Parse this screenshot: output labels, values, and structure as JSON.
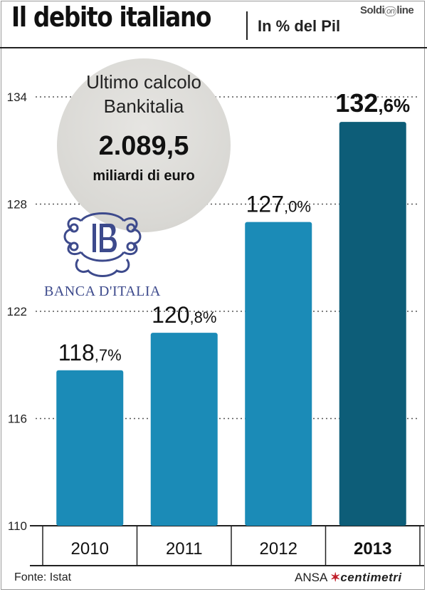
{
  "header": {
    "title": "Il debito italiano",
    "subtitle": "In % del Pil",
    "logo_left": "Soldi",
    "logo_mark": "on",
    "logo_right": "line"
  },
  "callout": {
    "line1": "Ultimo calcolo",
    "line2": "Bankitalia",
    "value": "2.089,5",
    "unit": "miliardi di euro"
  },
  "brand_badge": {
    "text": "BANCA D'ITALIA"
  },
  "footer": {
    "source": "Fonte: Istat",
    "agency": "ANSA",
    "agency_product": "centimetri"
  },
  "colors": {
    "bar": "#1b8bb7",
    "bar_highlight": "#0d5d78",
    "grid": "#555555",
    "logo": "#3d4a8c"
  },
  "chart_data": {
    "type": "bar",
    "title": "Il debito italiano",
    "subtitle": "In % del Pil",
    "categories": [
      "2010",
      "2011",
      "2012",
      "2013"
    ],
    "values": [
      118.7,
      120.8,
      127.0,
      132.6
    ],
    "value_labels": [
      {
        "int": "118",
        "dec": ",7%"
      },
      {
        "int": "120",
        "dec": ",8%"
      },
      {
        "int": "127",
        "dec": ",0%"
      },
      {
        "int": "132",
        "dec": ",6%"
      }
    ],
    "highlight_index": 3,
    "ylim": [
      110,
      134
    ],
    "yticks": [
      110,
      116,
      122,
      128,
      134
    ],
    "grid": true,
    "grid_style": "dotted",
    "xlabel": "",
    "ylabel": ""
  }
}
